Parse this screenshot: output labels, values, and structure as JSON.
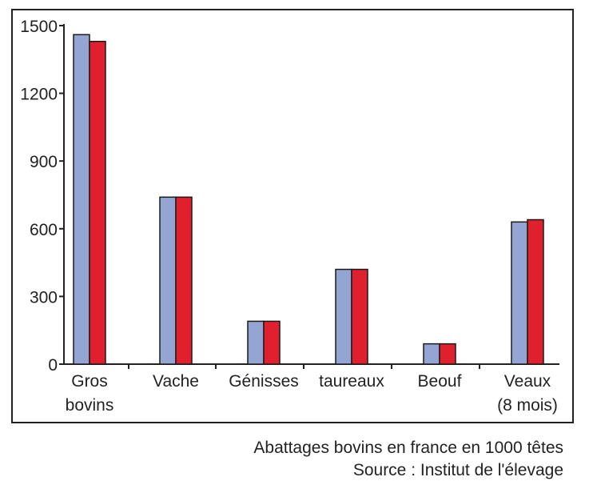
{
  "chart_data": {
    "type": "bar",
    "categories": [
      [
        "Gros",
        "bovins"
      ],
      [
        "Vache"
      ],
      [
        "Génisses"
      ],
      [
        "taureaux"
      ],
      [
        "Beouf"
      ],
      [
        "Veaux",
        "(8 mois)"
      ]
    ],
    "series": [
      {
        "values": [
          1460,
          740,
          190,
          420,
          90,
          630
        ],
        "color": "#94a5d3"
      },
      {
        "values": [
          1430,
          740,
          190,
          420,
          90,
          640
        ],
        "color": "#e0202c"
      }
    ],
    "ylim": [
      0,
      1500
    ],
    "yticks": [
      0,
      300,
      600,
      900,
      1200,
      1500
    ],
    "grid": false,
    "title": "",
    "xlabel": "",
    "ylabel": ""
  },
  "caption": {
    "line1": "Abattages bovins en france en 1000 têtes",
    "line2": "Source : Institut de l'élevage"
  }
}
